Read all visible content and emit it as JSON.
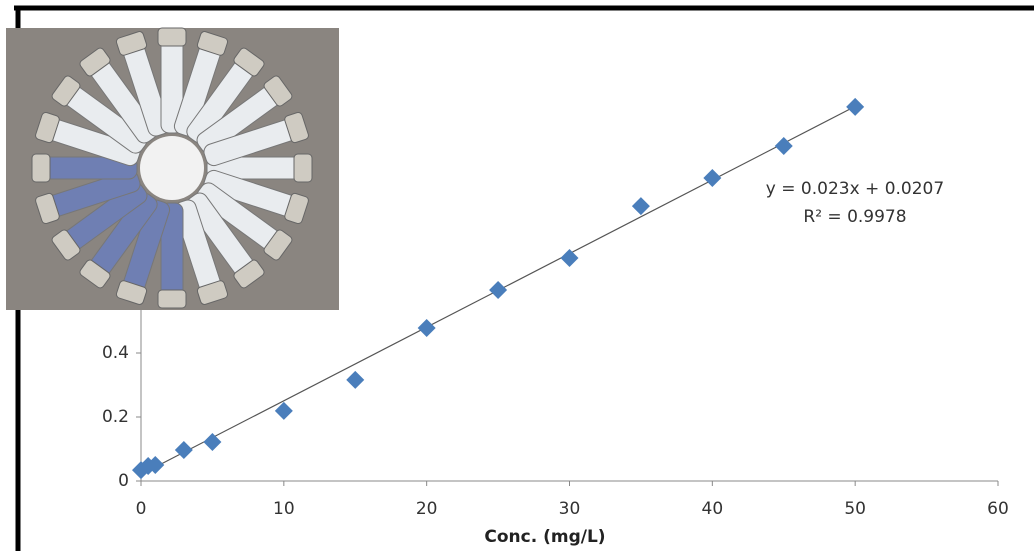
{
  "chart_data": {
    "type": "scatter",
    "x_label": "Conc. (mg/L)",
    "x": [
      0,
      0.5,
      1,
      3,
      5,
      10,
      15,
      20,
      25,
      30,
      35,
      40,
      45,
      50
    ],
    "values": [
      0.034,
      0.047,
      0.05,
      0.097,
      0.122,
      0.219,
      0.316,
      0.478,
      0.597,
      0.697,
      0.859,
      0.947,
      1.047,
      1.169
    ],
    "color": "#4a7ebb",
    "xlim": [
      0,
      60
    ],
    "xticks": [
      0,
      10,
      20,
      30,
      40,
      50,
      60
    ],
    "ylim": [
      0,
      1.4
    ],
    "yticks": [
      0,
      0.2,
      0.4
    ],
    "trendline": {
      "slope": 0.023,
      "intercept": 0.0207,
      "equation": "y = 0.023x + 0.0207",
      "r_squared": "R² = 0.9978"
    }
  }
}
